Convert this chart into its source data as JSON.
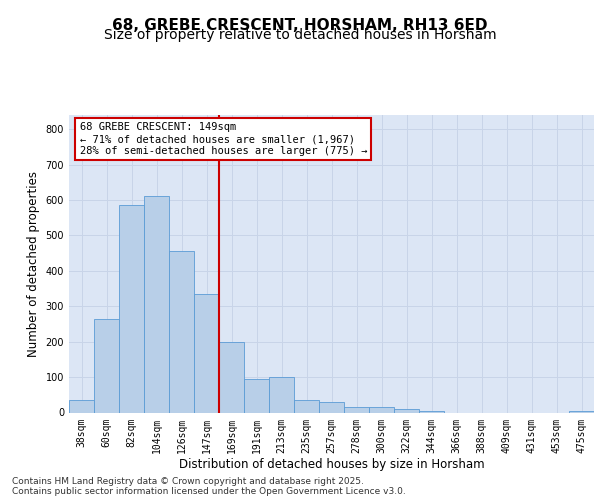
{
  "title_line1": "68, GREBE CRESCENT, HORSHAM, RH13 6ED",
  "title_line2": "Size of property relative to detached houses in Horsham",
  "xlabel": "Distribution of detached houses by size in Horsham",
  "ylabel": "Number of detached properties",
  "categories": [
    "38sqm",
    "60sqm",
    "82sqm",
    "104sqm",
    "126sqm",
    "147sqm",
    "169sqm",
    "191sqm",
    "213sqm",
    "235sqm",
    "257sqm",
    "278sqm",
    "300sqm",
    "322sqm",
    "344sqm",
    "366sqm",
    "388sqm",
    "409sqm",
    "431sqm",
    "453sqm",
    "475sqm"
  ],
  "values": [
    35,
    265,
    585,
    610,
    455,
    335,
    200,
    95,
    100,
    35,
    30,
    15,
    15,
    10,
    5,
    0,
    0,
    0,
    0,
    0,
    5
  ],
  "bar_color": "#b8cfe8",
  "bar_edge_color": "#5b9bd5",
  "vline_color": "#cc0000",
  "annotation_text": "68 GREBE CRESCENT: 149sqm\n← 71% of detached houses are smaller (1,967)\n28% of semi-detached houses are larger (775) →",
  "annotation_box_color": "#ffffff",
  "annotation_box_edge": "#cc0000",
  "ylim": [
    0,
    840
  ],
  "yticks": [
    0,
    100,
    200,
    300,
    400,
    500,
    600,
    700,
    800
  ],
  "grid_color": "#c8d4e8",
  "background_color": "#dce6f5",
  "footer_line1": "Contains HM Land Registry data © Crown copyright and database right 2025.",
  "footer_line2": "Contains public sector information licensed under the Open Government Licence v3.0.",
  "title_fontsize": 11,
  "subtitle_fontsize": 10,
  "axis_label_fontsize": 8.5,
  "tick_fontsize": 7,
  "annotation_fontsize": 7.5,
  "footer_fontsize": 6.5
}
